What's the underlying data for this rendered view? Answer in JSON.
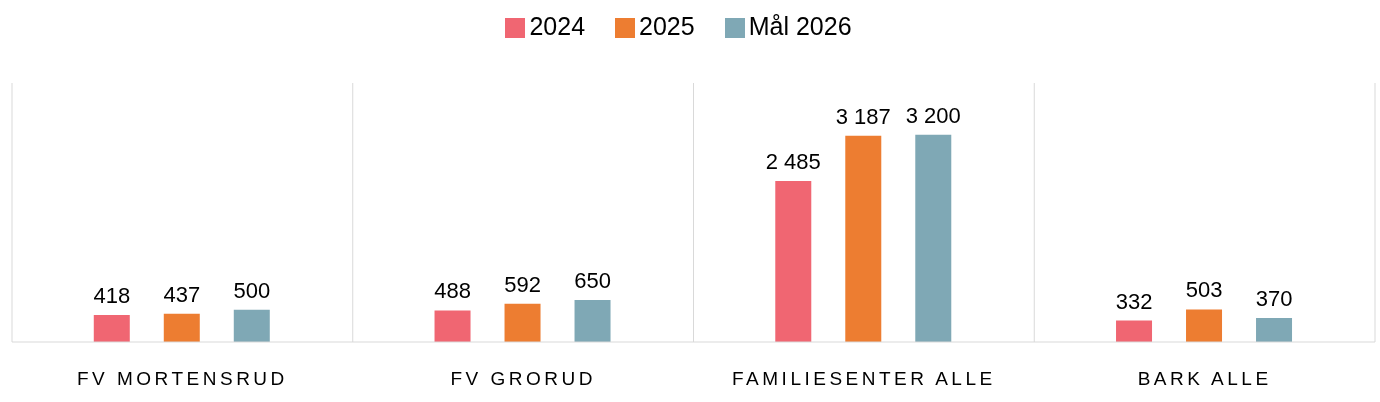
{
  "chart_data": {
    "type": "bar",
    "categories": [
      "FV MORTENSRUD",
      "FV GRORUD",
      "FAMILIESENTER ALLE",
      "BARK ALLE"
    ],
    "series": [
      {
        "name": "2024",
        "color": "#f06672",
        "values": [
          418,
          488,
          2485,
          332
        ],
        "value_labels": [
          "418",
          "488",
          "2 485",
          "332"
        ]
      },
      {
        "name": "2025",
        "color": "#ed7d31",
        "values": [
          437,
          592,
          3187,
          503
        ],
        "value_labels": [
          "437",
          "592",
          "3 187",
          "503"
        ]
      },
      {
        "name": "Mål 2026",
        "color": "#7fa8b5",
        "values": [
          500,
          650,
          3200,
          370
        ],
        "value_labels": [
          "500",
          "650",
          "3 200",
          "370"
        ]
      }
    ],
    "ylim": [
      0,
      4000
    ],
    "tick_labels": "x",
    "grid": "x",
    "legend": "top"
  }
}
